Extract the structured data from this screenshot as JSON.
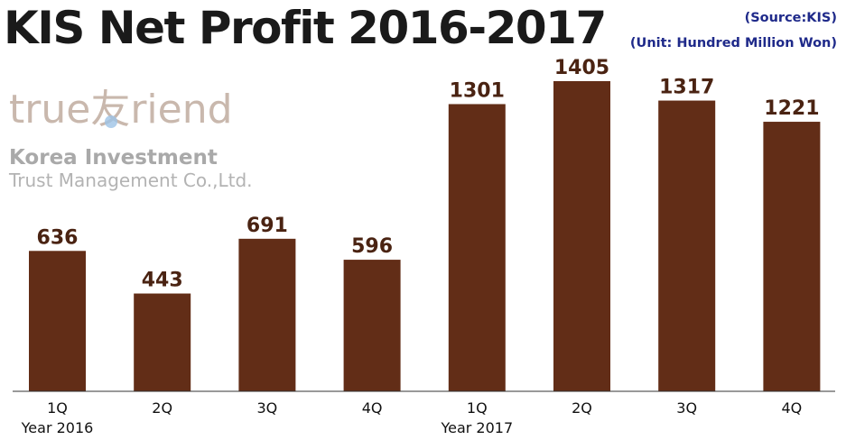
{
  "header": {
    "title": "KIS Net Profit 2016-2017",
    "source": "(Source:KIS)",
    "unit": "(Unit: Hundred Million Won)"
  },
  "logo": {
    "word_start": "true",
    "word_glyph": "友",
    "word_end": "riend",
    "line1": "Korea Investment",
    "line2": "Trust Management Co.,Ltd."
  },
  "colors": {
    "bar": "#622d17",
    "value_label": "#4a2312",
    "source_text": "#1f2a8a"
  },
  "chart_data": {
    "type": "bar",
    "title": "KIS Net Profit 2016-2017",
    "categories": [
      "1Q",
      "2Q",
      "3Q",
      "4Q",
      "1Q",
      "2Q",
      "3Q",
      "4Q"
    ],
    "groups": [
      {
        "label": "Year 2016",
        "start_index": 0
      },
      {
        "label": "Year 2017",
        "start_index": 4
      }
    ],
    "values": [
      636,
      443,
      691,
      596,
      1301,
      1405,
      1317,
      1221
    ],
    "ylim": [
      0,
      1405
    ],
    "grid": false,
    "data_labels": true
  }
}
